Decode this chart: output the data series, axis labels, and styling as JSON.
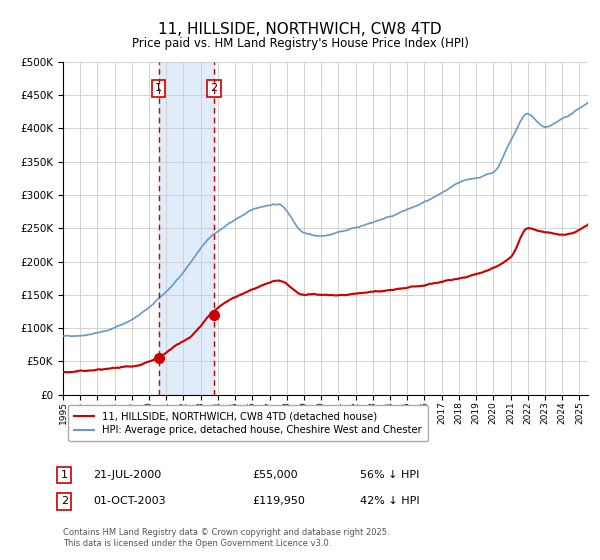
{
  "title": "11, HILLSIDE, NORTHWICH, CW8 4TD",
  "subtitle": "Price paid vs. HM Land Registry's House Price Index (HPI)",
  "legend_line1": "11, HILLSIDE, NORTHWICH, CW8 4TD (detached house)",
  "legend_line2": "HPI: Average price, detached house, Cheshire West and Chester",
  "annotation1_date": "21-JUL-2000",
  "annotation1_price": "£55,000",
  "annotation1_hpi": "56% ↓ HPI",
  "annotation2_date": "01-OCT-2003",
  "annotation2_price": "£119,950",
  "annotation2_hpi": "42% ↓ HPI",
  "footer": "Contains HM Land Registry data © Crown copyright and database right 2025.\nThis data is licensed under the Open Government Licence v3.0.",
  "hpi_color": "#6699cc",
  "property_color": "#cc0000",
  "sale1_x": 2000.55,
  "sale1_y": 55000,
  "sale2_x": 2003.75,
  "sale2_y": 119950,
  "ylim": [
    0,
    500000
  ],
  "xlim_start": 1995,
  "xlim_end": 2025.5,
  "background_color": "#ffffff",
  "grid_color": "#cccccc"
}
